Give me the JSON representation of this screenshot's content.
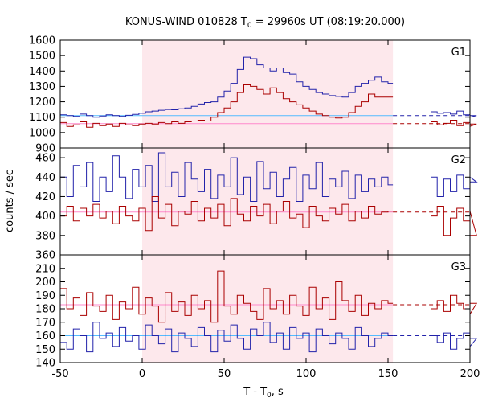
{
  "chart_data": {
    "type": "line",
    "title_main": "KONUS-WIND 010828 T",
    "title_sub": "0",
    "title_rest": " = 29960s UT (08:19:20.000)",
    "xlabel_main": "T - T",
    "xlabel_sub": "0",
    "xlabel_rest": ", s",
    "ylabel": "counts / sec",
    "xlim": [
      -50,
      200
    ],
    "xticks": [
      -50,
      0,
      50,
      100,
      150,
      200
    ],
    "highlight_interval": [
      0,
      153
    ],
    "colors": {
      "blue": "#2222aa",
      "red": "#aa0000",
      "cyan": "#55bbff",
      "pink": "#ff88cc",
      "highlight": "#fde8ec"
    },
    "panels": [
      {
        "label": "G1",
        "ylim": [
          900,
          1600
        ],
        "yticks": [
          900,
          1000,
          1100,
          1200,
          1300,
          1400,
          1500,
          1600
        ],
        "background_blue": 1110,
        "background_red": 1058,
        "series": [
          {
            "name": "",
            "color": "blue",
            "segments": [
              {
                "x": [
                  -50,
                  -46,
                  -42,
                  -38,
                  -34,
                  -30,
                  -26,
                  -22,
                  -18,
                  -14,
                  -10,
                  -6,
                  -2,
                  2,
                  6,
                  10,
                  14,
                  18,
                  22,
                  26,
                  30,
                  34,
                  38,
                  42,
                  46,
                  50,
                  54,
                  58,
                  62,
                  66,
                  70,
                  74,
                  78,
                  82,
                  86,
                  90,
                  94,
                  98,
                  102,
                  106,
                  110,
                  114,
                  118,
                  122,
                  126,
                  130,
                  134,
                  138,
                  142,
                  146,
                  150
                ],
                "y": [
                  1115,
                  1110,
                  1105,
                  1120,
                  1110,
                  1100,
                  1108,
                  1115,
                  1110,
                  1105,
                  1112,
                  1118,
                  1125,
                  1135,
                  1140,
                  1145,
                  1150,
                  1148,
                  1155,
                  1160,
                  1170,
                  1185,
                  1195,
                  1200,
                  1230,
                  1270,
                  1320,
                  1410,
                  1490,
                  1480,
                  1440,
                  1420,
                  1400,
                  1420,
                  1390,
                  1380,
                  1330,
                  1300,
                  1280,
                  1260,
                  1250,
                  1240,
                  1235,
                  1230,
                  1260,
                  1300,
                  1320,
                  1340,
                  1360,
                  1330,
                  1320
                ]
              },
              {
                "x": [
                  176,
                  180,
                  184,
                  188,
                  192,
                  196,
                  200,
                  204
                ],
                "y": [
                  1135,
                  1125,
                  1130,
                  1120,
                  1140,
                  1115,
                  1100,
                  1110
                ]
              }
            ]
          },
          {
            "name": "",
            "color": "red",
            "segments": [
              {
                "x": [
                  -50,
                  -46,
                  -42,
                  -38,
                  -34,
                  -30,
                  -26,
                  -22,
                  -18,
                  -14,
                  -10,
                  -6,
                  -2,
                  2,
                  6,
                  10,
                  14,
                  18,
                  22,
                  26,
                  30,
                  34,
                  38,
                  42,
                  46,
                  50,
                  54,
                  58,
                  62,
                  66,
                  70,
                  74,
                  78,
                  82,
                  86,
                  90,
                  94,
                  98,
                  102,
                  106,
                  110,
                  114,
                  118,
                  122,
                  126,
                  130,
                  134,
                  138,
                  142,
                  146,
                  150
                ],
                "y": [
                  1065,
                  1040,
                  1050,
                  1070,
                  1035,
                  1060,
                  1045,
                  1055,
                  1040,
                  1060,
                  1050,
                  1045,
                  1055,
                  1060,
                  1055,
                  1065,
                  1058,
                  1070,
                  1060,
                  1070,
                  1075,
                  1080,
                  1075,
                  1100,
                  1130,
                  1160,
                  1200,
                  1260,
                  1310,
                  1300,
                  1280,
                  1250,
                  1290,
                  1260,
                  1220,
                  1200,
                  1180,
                  1160,
                  1140,
                  1120,
                  1110,
                  1100,
                  1095,
                  1100,
                  1130,
                  1170,
                  1200,
                  1250,
                  1230,
                  1230,
                  1230
                ]
              },
              {
                "x": [
                  176,
                  180,
                  184,
                  188,
                  192,
                  196,
                  200,
                  204
                ],
                "y": [
                  1070,
                  1050,
                  1060,
                  1080,
                  1045,
                  1065,
                  1040,
                  1055
                ]
              }
            ]
          }
        ]
      },
      {
        "label": "G2",
        "ylim": [
          360,
          470
        ],
        "yticks": [
          360,
          380,
          400,
          420,
          440,
          460
        ],
        "background_blue": 434,
        "background_red": 404,
        "series": [
          {
            "name": "",
            "color": "blue",
            "segments": [
              {
                "x": [
                  -50,
                  -46,
                  -42,
                  -38,
                  -34,
                  -30,
                  -26,
                  -22,
                  -18,
                  -14,
                  -10,
                  -6,
                  -2,
                  2,
                  6,
                  10,
                  14,
                  18,
                  22,
                  26,
                  30,
                  34,
                  38,
                  42,
                  46,
                  50,
                  54,
                  58,
                  62,
                  66,
                  70,
                  74,
                  78,
                  82,
                  86,
                  90,
                  94,
                  98,
                  102,
                  106,
                  110,
                  114,
                  118,
                  122,
                  126,
                  130,
                  134,
                  138,
                  142,
                  146,
                  150
                ],
                "y": [
                  440,
                  420,
                  452,
                  430,
                  455,
                  415,
                  440,
                  425,
                  462,
                  440,
                  418,
                  448,
                  430,
                  452,
                  415,
                  465,
                  430,
                  445,
                  420,
                  455,
                  438,
                  425,
                  448,
                  418,
                  442,
                  430,
                  460,
                  422,
                  440,
                  415,
                  456,
                  428,
                  445,
                  420,
                  438,
                  450,
                  415,
                  442,
                  428,
                  455,
                  420,
                  438,
                  430,
                  446,
                  418,
                  442,
                  425,
                  438,
                  430,
                  440,
                  432
                ]
              },
              {
                "x": [
                  176,
                  180,
                  184,
                  188,
                  192,
                  196,
                  200,
                  204
                ],
                "y": [
                  440,
                  420,
                  438,
                  425,
                  442,
                  428,
                  440,
                  435
                ]
              }
            ]
          },
          {
            "name": "",
            "color": "red",
            "segments": [
              {
                "x": [
                  -50,
                  -46,
                  -42,
                  -38,
                  -34,
                  -30,
                  -26,
                  -22,
                  -18,
                  -14,
                  -10,
                  -6,
                  -2,
                  2,
                  6,
                  10,
                  14,
                  18,
                  22,
                  26,
                  30,
                  34,
                  38,
                  42,
                  46,
                  50,
                  54,
                  58,
                  62,
                  66,
                  70,
                  74,
                  78,
                  82,
                  86,
                  90,
                  94,
                  98,
                  102,
                  106,
                  110,
                  114,
                  118,
                  122,
                  126,
                  130,
                  134,
                  138,
                  142,
                  146,
                  150
                ],
                "y": [
                  400,
                  410,
                  395,
                  408,
                  400,
                  412,
                  398,
                  405,
                  392,
                  410,
                  400,
                  395,
                  408,
                  385,
                  420,
                  398,
                  412,
                  390,
                  405,
                  402,
                  415,
                  395,
                  408,
                  398,
                  412,
                  390,
                  418,
                  402,
                  395,
                  410,
                  400,
                  412,
                  392,
                  405,
                  415,
                  398,
                  402,
                  388,
                  410,
                  400,
                  395,
                  408,
                  402,
                  412,
                  395,
                  405,
                  398,
                  410,
                  402,
                  404,
                  405
                ]
              },
              {
                "x": [
                  176,
                  180,
                  184,
                  188,
                  192,
                  196,
                  200,
                  204
                ],
                "y": [
                  400,
                  410,
                  380,
                  398,
                  408,
                  395,
                  405,
                  380
                ]
              }
            ]
          }
        ]
      },
      {
        "label": "G3",
        "ylim": [
          140,
          220
        ],
        "yticks": [
          140,
          150,
          160,
          170,
          180,
          190,
          200,
          210
        ],
        "background_blue": 160,
        "background_red": 183,
        "series": [
          {
            "name": "",
            "color": "blue",
            "segments": [
              {
                "x": [
                  -50,
                  -46,
                  -42,
                  -38,
                  -34,
                  -30,
                  -26,
                  -22,
                  -18,
                  -14,
                  -10,
                  -6,
                  -2,
                  2,
                  6,
                  10,
                  14,
                  18,
                  22,
                  26,
                  30,
                  34,
                  38,
                  42,
                  46,
                  50,
                  54,
                  58,
                  62,
                  66,
                  70,
                  74,
                  78,
                  82,
                  86,
                  90,
                  94,
                  98,
                  102,
                  106,
                  110,
                  114,
                  118,
                  122,
                  126,
                  130,
                  134,
                  138,
                  142,
                  146,
                  150
                ],
                "y": [
                  155,
                  150,
                  165,
                  160,
                  148,
                  170,
                  158,
                  162,
                  152,
                  166,
                  156,
                  160,
                  150,
                  168,
                  160,
                  154,
                  165,
                  148,
                  162,
                  158,
                  152,
                  166,
                  160,
                  148,
                  164,
                  156,
                  168,
                  158,
                  150,
                  165,
                  160,
                  170,
                  155,
                  162,
                  150,
                  166,
                  158,
                  162,
                  148,
                  165,
                  160,
                  154,
                  162,
                  158,
                  150,
                  166,
                  160,
                  152,
                  158,
                  162,
                  160
                ]
              },
              {
                "x": [
                  176,
                  180,
                  184,
                  188,
                  192,
                  196,
                  200,
                  204
                ],
                "y": [
                  160,
                  155,
                  162,
                  150,
                  158,
                  162,
                  152,
                  158
                ]
              }
            ]
          },
          {
            "name": "",
            "color": "red",
            "segments": [
              {
                "x": [
                  -50,
                  -46,
                  -42,
                  -38,
                  -34,
                  -30,
                  -26,
                  -22,
                  -18,
                  -14,
                  -10,
                  -6,
                  -2,
                  2,
                  6,
                  10,
                  14,
                  18,
                  22,
                  26,
                  30,
                  34,
                  38,
                  42,
                  46,
                  50,
                  54,
                  58,
                  62,
                  66,
                  70,
                  74,
                  78,
                  82,
                  86,
                  90,
                  94,
                  98,
                  102,
                  106,
                  110,
                  114,
                  118,
                  122,
                  126,
                  130,
                  134,
                  138,
                  142,
                  146,
                  150
                ],
                "y": [
                  195,
                  180,
                  188,
                  175,
                  192,
                  182,
                  178,
                  190,
                  172,
                  185,
                  180,
                  196,
                  176,
                  188,
                  182,
                  170,
                  192,
                  178,
                  185,
                  175,
                  190,
                  180,
                  186,
                  170,
                  208,
                  182,
                  176,
                  190,
                  184,
                  178,
                  172,
                  195,
                  180,
                  186,
                  176,
                  190,
                  182,
                  175,
                  196,
                  180,
                  188,
                  172,
                  200,
                  186,
                  178,
                  190,
                  175,
                  184,
                  180,
                  186,
                  184
                ]
              },
              {
                "x": [
                  176,
                  180,
                  184,
                  188,
                  192,
                  196,
                  200,
                  204
                ],
                "y": [
                  180,
                  186,
                  178,
                  190,
                  184,
                  180,
                  176,
                  184
                ]
              }
            ]
          }
        ]
      }
    ]
  }
}
